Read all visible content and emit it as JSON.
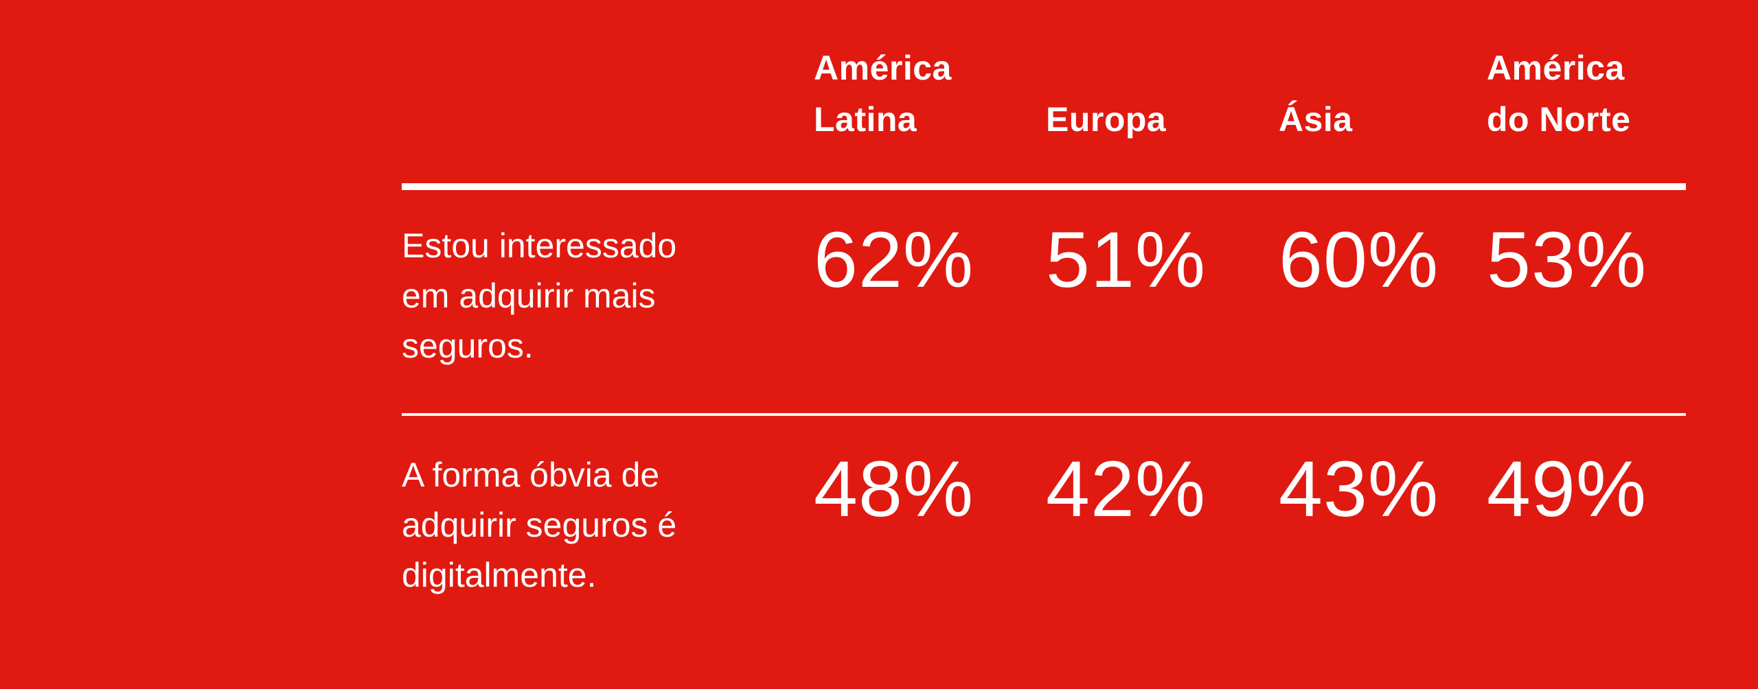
{
  "theme": {
    "background": "#E01A11",
    "text": "#FFFFFF",
    "rule": "#FFFFFF"
  },
  "table": {
    "columns": [
      {
        "label": "América\nLatina"
      },
      {
        "label": "Europa"
      },
      {
        "label": "Ásia"
      },
      {
        "label": "América\ndo Norte"
      }
    ],
    "rows": [
      {
        "label": "Estou interessado\nem adquirir mais\nseguros.",
        "values": [
          "62%",
          "51%",
          "60%",
          "53%"
        ]
      },
      {
        "label": "A forma óbvia de\nadquirir seguros é\ndigitalmente.",
        "values": [
          "48%",
          "42%",
          "43%",
          "49%"
        ]
      }
    ]
  },
  "chart_data": {
    "type": "table",
    "title": "",
    "columns": [
      "América Latina",
      "Europa",
      "Ásia",
      "América do Norte"
    ],
    "rows": [
      {
        "label": "Estou interessado em adquirir mais seguros.",
        "values_pct": [
          62,
          51,
          60,
          53
        ]
      },
      {
        "label": "A forma óbvia de adquirir seguros é digitalmente.",
        "values_pct": [
          48,
          42,
          43,
          49
        ]
      }
    ],
    "value_unit": "%",
    "layout": {
      "background_color": "#E01A11",
      "text_color": "#FFFFFF",
      "header_rule": "thick",
      "row_separator_rule": "thin",
      "grid": "off"
    }
  }
}
